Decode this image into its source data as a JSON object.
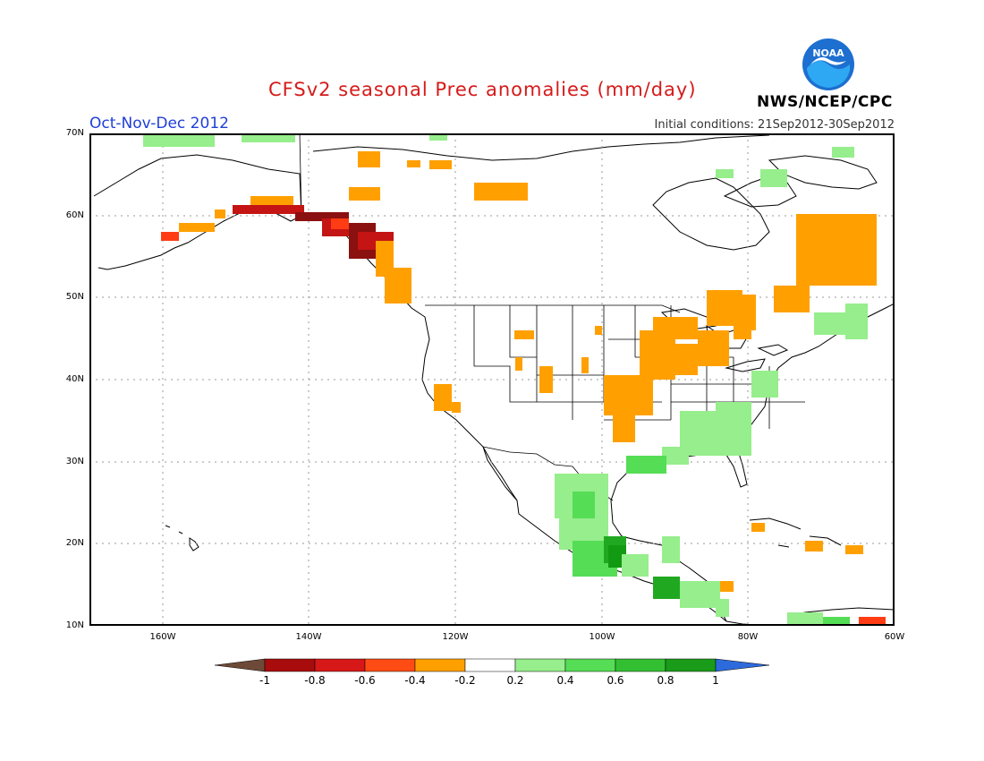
{
  "header": {
    "title": "CFSv2 seasonal Prec anomalies (mm/day)",
    "period": "Oct-Nov-Dec 2012",
    "initial_conditions": "Initial conditions: 21Sep2012-30Sep2012",
    "agency": "NWS/NCEP/CPC",
    "logo_text": "NOAA",
    "logo_colors": {
      "outer": "#1d6fd0",
      "inner": "#2ea8f2",
      "gull": "#ffffff"
    }
  },
  "map": {
    "projection": "lat-lon",
    "lon_range": [
      -170,
      -60
    ],
    "lat_range": [
      10,
      70
    ],
    "grid": true,
    "y_ticks": [
      "70N",
      "60N",
      "50N",
      "40N",
      "30N",
      "20N",
      "10N"
    ],
    "x_ticks": [
      "160W",
      "140W",
      "120W",
      "100W",
      "80W",
      "60W"
    ],
    "anomaly_colors": {
      "dry_strong": "#8b1010",
      "dry_very": "#c41414",
      "dry_mid": "#ff3c14",
      "dry_weak": "#ffa000",
      "wet_weak": "#96ee8c",
      "wet_mid": "#55dd55",
      "wet_strong": "#21a821",
      "wet_very": "#139a13"
    }
  },
  "colorbar": {
    "labels": [
      "-1",
      "-0.8",
      "-0.6",
      "-0.4",
      "-0.2",
      "0.2",
      "0.4",
      "0.6",
      "0.8",
      "1"
    ],
    "colors": [
      "#6d4a37",
      "#a80c0c",
      "#d71818",
      "#ff4c14",
      "#ffa000",
      "#ffffff",
      "#96ee8c",
      "#55dd55",
      "#32c032",
      "#1a9c1a",
      "#2d6bdc"
    ]
  }
}
